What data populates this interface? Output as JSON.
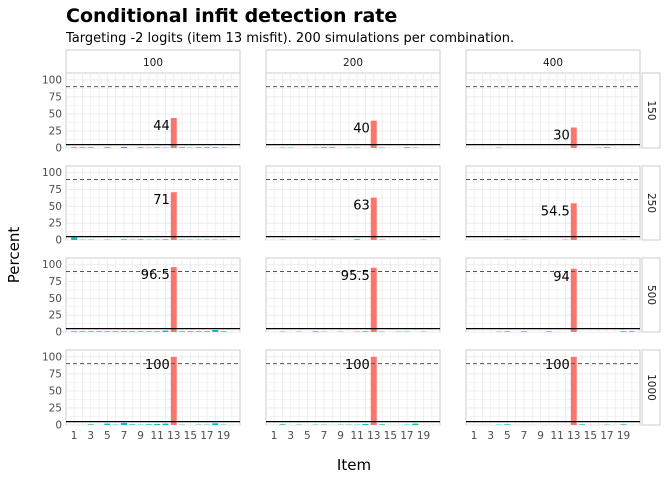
{
  "chart_data": {
    "type": "bar",
    "title": "Conditional infit detection rate",
    "subtitle": "Targeting -2 logits (item 13 misfit). 200 simulations per combination.",
    "xlabel": "Item",
    "ylabel": "Percent",
    "ylim": [
      0,
      110
    ],
    "y_ticks": [
      "0",
      "25",
      "50",
      "75",
      "100"
    ],
    "x_ticks": [
      "1",
      "3",
      "5",
      "7",
      "9",
      "11",
      "13",
      "15",
      "17",
      "19"
    ],
    "items": [
      1,
      2,
      3,
      4,
      5,
      6,
      7,
      8,
      9,
      10,
      11,
      12,
      13,
      14,
      15,
      16,
      17,
      18,
      19,
      20
    ],
    "column_facets": [
      "100",
      "200",
      "400"
    ],
    "row_facets": [
      "150",
      "250",
      "500",
      "1000"
    ],
    "highlight_item": 13,
    "reference_lines": {
      "dashed": 90,
      "solid": 5
    },
    "colors": {
      "misfit_item": "#F8766D",
      "other_items": "#00BFC4",
      "panel_border": "#cccccc",
      "grid": "#ebebeb"
    },
    "panels": [
      {
        "column": "100",
        "row": "150",
        "label": "44",
        "values": [
          1,
          1,
          1,
          0,
          1,
          0,
          1.5,
          0,
          1,
          0.5,
          1,
          0.5,
          44,
          1,
          0.5,
          1,
          1,
          1,
          0.5,
          0
        ]
      },
      {
        "column": "200",
        "row": "150",
        "label": "40",
        "values": [
          0,
          0.5,
          0.5,
          0,
          0,
          0.5,
          1,
          1,
          0,
          0.5,
          0.5,
          0,
          40,
          0.5,
          0,
          0,
          1,
          0.5,
          0,
          0
        ]
      },
      {
        "column": "400",
        "row": "150",
        "label": "30",
        "values": [
          0,
          0,
          0,
          0.5,
          0,
          0,
          0,
          0,
          0,
          0,
          0,
          0,
          30,
          0,
          0,
          0.5,
          1,
          0,
          0,
          0
        ]
      },
      {
        "column": "100",
        "row": "250",
        "label": "71",
        "values": [
          4,
          0.5,
          0.5,
          0,
          0.5,
          0,
          1,
          0.5,
          1,
          0.5,
          0.5,
          1,
          71,
          0.5,
          0.5,
          0.5,
          0.5,
          0.5,
          0.5,
          0
        ]
      },
      {
        "column": "200",
        "row": "250",
        "label": "63",
        "values": [
          0,
          0.5,
          0,
          0,
          0,
          0.5,
          0,
          0.5,
          0,
          0,
          1,
          0,
          63,
          0.5,
          0,
          0,
          0,
          0,
          0.5,
          0
        ]
      },
      {
        "column": "400",
        "row": "250",
        "label": "54.5",
        "values": [
          0,
          0,
          0,
          0,
          0.5,
          0,
          0.5,
          0,
          0,
          0,
          0,
          0.5,
          54.5,
          0,
          0,
          0,
          0,
          0,
          0.5,
          0
        ]
      },
      {
        "column": "100",
        "row": "500",
        "label": "96.5",
        "values": [
          1,
          1,
          1,
          1,
          1,
          1,
          1,
          1,
          1,
          1,
          1,
          2,
          96.5,
          1,
          1,
          1,
          1,
          3,
          1,
          0
        ]
      },
      {
        "column": "200",
        "row": "500",
        "label": "95.5",
        "values": [
          0,
          0.5,
          0,
          0.5,
          0,
          1,
          0.5,
          0,
          0.5,
          0,
          0.5,
          1,
          95.5,
          0.5,
          0,
          0.5,
          0.5,
          0,
          0.5,
          0
        ]
      },
      {
        "column": "400",
        "row": "500",
        "label": "94",
        "values": [
          0,
          0,
          0,
          0.5,
          1,
          0,
          1,
          0,
          0,
          1,
          0,
          0,
          94,
          0,
          0,
          0,
          0,
          0,
          1,
          1
        ]
      },
      {
        "column": "100",
        "row": "1000",
        "label": "100",
        "values": [
          0,
          0,
          1,
          0,
          2,
          0.5,
          3,
          1,
          0.5,
          1,
          1.5,
          2,
          100,
          0.5,
          0,
          0.5,
          0.5,
          2.5,
          0.5,
          0
        ]
      },
      {
        "column": "200",
        "row": "1000",
        "label": "100",
        "values": [
          0,
          1,
          0,
          0.5,
          0,
          0.5,
          0.5,
          0,
          0.5,
          0.5,
          0.5,
          1.5,
          100,
          1,
          0,
          0,
          0.5,
          2,
          0,
          0
        ]
      },
      {
        "column": "400",
        "row": "1000",
        "label": "100",
        "values": [
          0,
          0,
          0,
          0.5,
          1,
          0,
          0,
          0,
          0,
          0,
          0,
          0,
          100,
          1,
          0,
          0,
          0.5,
          0,
          1,
          0
        ]
      }
    ]
  }
}
